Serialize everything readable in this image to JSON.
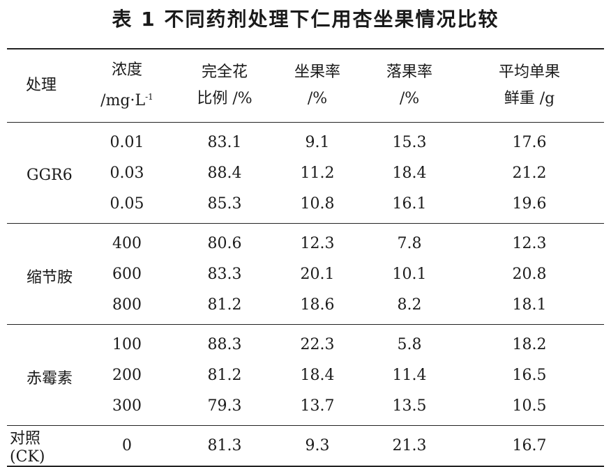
{
  "title": "表 1   不同药剂处理下仁用杏坐果情况比较",
  "headers": {
    "treatment": "处理",
    "concentration_line1": "浓度",
    "concentration_line2": "/mg·L",
    "concentration_sup": "-1",
    "complete_flower_line1": "完全花",
    "complete_flower_line2": "比例 /%",
    "fruit_set_line1": "坐果率",
    "fruit_set_line2": "/%",
    "fruit_drop_line1": "落果率",
    "fruit_drop_line2": "/%",
    "fresh_weight_line1": "平均单果",
    "fresh_weight_line2": "鲜重 /g"
  },
  "groups": [
    {
      "name": "GGR6",
      "rows": [
        {
          "conc": "0.01",
          "complete": "83.1",
          "set": "9.1",
          "drop": "15.3",
          "weight": "17.6"
        },
        {
          "conc": "0.03",
          "complete": "88.4",
          "set": "11.2",
          "drop": "18.4",
          "weight": "21.2"
        },
        {
          "conc": "0.05",
          "complete": "85.3",
          "set": "10.8",
          "drop": "16.1",
          "weight": "19.6"
        }
      ]
    },
    {
      "name": "缩节胺",
      "rows": [
        {
          "conc": "400",
          "complete": "80.6",
          "set": "12.3",
          "drop": "7.8",
          "weight": "12.3"
        },
        {
          "conc": "600",
          "complete": "83.3",
          "set": "20.1",
          "drop": "10.1",
          "weight": "20.8"
        },
        {
          "conc": "800",
          "complete": "81.2",
          "set": "18.6",
          "drop": "8.2",
          "weight": "18.1"
        }
      ]
    },
    {
      "name": "赤霉素",
      "rows": [
        {
          "conc": "100",
          "complete": "88.3",
          "set": "22.3",
          "drop": "5.8",
          "weight": "18.2"
        },
        {
          "conc": "200",
          "complete": "81.2",
          "set": "18.4",
          "drop": "11.4",
          "weight": "16.5"
        },
        {
          "conc": "300",
          "complete": "79.3",
          "set": "13.7",
          "drop": "13.5",
          "weight": "10.5"
        }
      ]
    }
  ],
  "control": {
    "name": "对照(CK)",
    "conc": "0",
    "complete": "81.3",
    "set": "9.3",
    "drop": "21.3",
    "weight": "16.7"
  }
}
